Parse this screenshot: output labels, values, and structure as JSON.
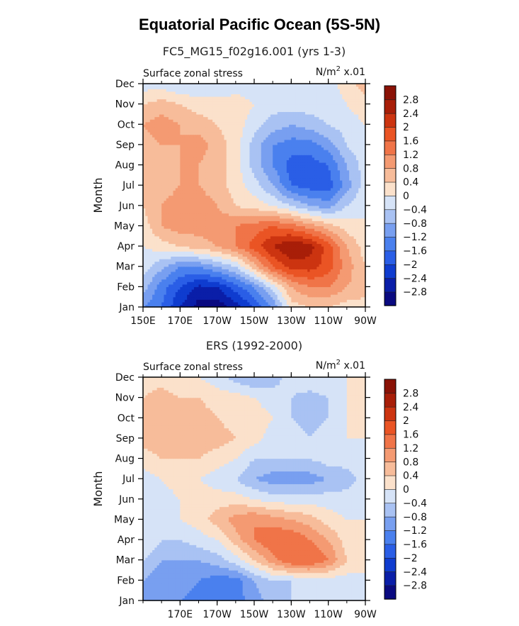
{
  "figure": {
    "title": "Equatorial Pacific Ocean (5S-5N)"
  },
  "chart_data": [
    {
      "type": "heatmap",
      "title": "FC5_MG15_f02g16.001 (yrs 1-3)",
      "left_label": "Surface zonal stress",
      "units": "N/m² x.01",
      "units_parts": {
        "base": "N/m",
        "sup": "2",
        "scale": "x.01"
      },
      "xlabel": "",
      "ylabel": "Month",
      "xlim": [
        150,
        270
      ],
      "x_ticks": [
        150,
        170,
        190,
        210,
        230,
        250,
        270
      ],
      "x_tick_labels": [
        "150E",
        "170E",
        "170W",
        "150W",
        "130W",
        "110W",
        "90W"
      ],
      "y_tick_labels": [
        "Jan",
        "Feb",
        "Mar",
        "Apr",
        "May",
        "Jun",
        "Jul",
        "Aug",
        "Sep",
        "Oct",
        "Nov",
        "Dec"
      ],
      "colorbar": {
        "levels": [
          -2.8,
          -2.4,
          -2,
          -1.6,
          -1.2,
          -0.8,
          -0.4,
          0,
          0.4,
          0.8,
          1.2,
          1.6,
          2,
          2.4,
          2.8
        ],
        "labels": [
          "−2.8",
          "−2.4",
          "−2",
          "−1.6",
          "−1.2",
          "−0.8",
          "−0.4",
          "0",
          "0.4",
          "0.8",
          "1.2",
          "1.6",
          "2",
          "2.4",
          "2.8"
        ],
        "colors": [
          "#0a0a80",
          "#0a1ea8",
          "#0f3ccf",
          "#2a5ee6",
          "#4a80ee",
          "#789ff0",
          "#a9c2f3",
          "#d6e3f7",
          "#fbe1cb",
          "#f7bc9a",
          "#f49a72",
          "#f07448",
          "#ea5424",
          "#cc3410",
          "#a81e08",
          "#8a1206"
        ]
      },
      "x": [
        150,
        160,
        170,
        180,
        190,
        200,
        210,
        220,
        230,
        240,
        250,
        260,
        270
      ],
      "y": [
        1,
        2,
        3,
        4,
        5,
        6,
        7,
        8,
        9,
        10,
        11,
        12
      ],
      "z": [
        [
          -1.2,
          -1.6,
          -2.4,
          -3.0,
          -3.1,
          -2.6,
          -2.0,
          -1.2,
          0.2,
          0.4,
          0.4,
          0.2,
          0.2
        ],
        [
          -0.6,
          -1.4,
          -2.0,
          -2.5,
          -2.4,
          -1.8,
          -1.2,
          -0.2,
          0.8,
          1.2,
          1.2,
          0.8,
          0.6
        ],
        [
          -0.2,
          -0.7,
          -1.2,
          -1.2,
          -0.8,
          -0.4,
          0.6,
          1.6,
          2.2,
          2.2,
          1.8,
          1.0,
          0.4
        ],
        [
          0.0,
          0.2,
          0.4,
          0.6,
          0.8,
          1.2,
          1.8,
          2.4,
          2.8,
          2.6,
          1.8,
          0.8,
          0.2
        ],
        [
          0.2,
          0.8,
          1.0,
          1.0,
          1.0,
          1.2,
          1.4,
          1.6,
          1.4,
          1.0,
          0.6,
          0.2,
          0.0
        ],
        [
          0.4,
          0.8,
          1.0,
          1.0,
          0.8,
          0.4,
          0.2,
          0.0,
          -0.4,
          -0.8,
          -1.0,
          -0.4,
          0.0
        ],
        [
          0.4,
          0.6,
          0.8,
          0.8,
          0.6,
          0.2,
          -0.2,
          -0.8,
          -1.6,
          -1.8,
          -1.8,
          -1.0,
          -0.2
        ],
        [
          0.4,
          0.6,
          0.8,
          0.8,
          0.6,
          0.2,
          -0.6,
          -1.2,
          -1.8,
          -1.8,
          -1.6,
          -0.8,
          -0.2
        ],
        [
          0.6,
          0.8,
          0.8,
          1.0,
          0.6,
          0.2,
          -0.6,
          -1.2,
          -1.4,
          -1.4,
          -1.0,
          -0.4,
          0.0
        ],
        [
          0.8,
          1.0,
          0.8,
          0.6,
          0.4,
          0.2,
          -0.2,
          -0.6,
          -0.8,
          -0.6,
          -0.4,
          -0.2,
          0.0
        ],
        [
          0.4,
          0.6,
          0.4,
          0.2,
          0.2,
          0.2,
          0.0,
          -0.2,
          -0.2,
          -0.2,
          -0.2,
          0.0,
          0.2
        ],
        [
          -0.2,
          -0.2,
          -0.4,
          -0.4,
          -0.4,
          -0.2,
          -0.2,
          -0.4,
          -0.4,
          -0.2,
          -0.2,
          0.2,
          0.6
        ]
      ]
    },
    {
      "type": "heatmap",
      "title": "ERS (1992-2000)",
      "left_label": "Surface zonal stress",
      "units": "N/m² x.01",
      "units_parts": {
        "base": "N/m",
        "sup": "2",
        "scale": "x.01"
      },
      "xlabel": "",
      "ylabel": "Month",
      "xlim": [
        150,
        270
      ],
      "x_ticks": [
        170,
        190,
        210,
        230,
        250,
        270
      ],
      "x_tick_labels": [
        "170E",
        "170W",
        "150W",
        "130W",
        "110W",
        "90W"
      ],
      "y_tick_labels": [
        "Jan",
        "Feb",
        "Mar",
        "Apr",
        "May",
        "Jun",
        "Jul",
        "Aug",
        "Sep",
        "Oct",
        "Nov",
        "Dec"
      ],
      "colorbar": {
        "levels": [
          -2.8,
          -2.4,
          -2,
          -1.6,
          -1.2,
          -0.8,
          -0.4,
          0,
          0.4,
          0.8,
          1.2,
          1.6,
          2,
          2.4,
          2.8
        ],
        "labels": [
          "−2.8",
          "−2.4",
          "−2",
          "−1.6",
          "−1.2",
          "−0.8",
          "−0.4",
          "0",
          "0.4",
          "0.8",
          "1.2",
          "1.6",
          "2",
          "2.4",
          "2.8"
        ],
        "colors": [
          "#0a0a80",
          "#0a1ea8",
          "#0f3ccf",
          "#2a5ee6",
          "#4a80ee",
          "#789ff0",
          "#a9c2f3",
          "#d6e3f7",
          "#fbe1cb",
          "#f7bc9a",
          "#f49a72",
          "#f07448",
          "#ea5424",
          "#cc3410",
          "#a81e08",
          "#8a1206"
        ]
      },
      "x": [
        150,
        160,
        170,
        180,
        190,
        200,
        210,
        220,
        230,
        240,
        250,
        260,
        270
      ],
      "y": [
        1,
        2,
        3,
        4,
        5,
        6,
        7,
        8,
        9,
        10,
        11,
        12
      ],
      "z": [
        [
          -0.8,
          -1.2,
          -1.2,
          -1.4,
          -1.6,
          -1.4,
          -1.0,
          -0.6,
          -0.4,
          -0.2,
          -0.2,
          -0.2,
          0.0
        ],
        [
          -0.8,
          -1.2,
          -1.0,
          -1.2,
          -1.4,
          -1.4,
          -0.8,
          -0.4,
          -0.4,
          -0.2,
          -0.2,
          -0.2,
          0.0
        ],
        [
          -0.4,
          -0.8,
          -0.8,
          -0.8,
          -0.6,
          -0.2,
          0.4,
          1.0,
          1.6,
          1.6,
          1.2,
          0.4,
          0.0
        ],
        [
          0.0,
          -0.4,
          -0.4,
          -0.2,
          0.0,
          0.6,
          1.2,
          1.6,
          1.6,
          1.2,
          0.8,
          0.2,
          0.0
        ],
        [
          -0.2,
          -0.2,
          0.0,
          0.2,
          0.6,
          1.0,
          1.2,
          1.0,
          0.8,
          0.6,
          0.2,
          0.0,
          0.0
        ],
        [
          -0.4,
          -0.2,
          0.0,
          0.2,
          0.2,
          0.2,
          0.0,
          -0.2,
          -0.2,
          -0.2,
          -0.2,
          -0.2,
          -0.2
        ],
        [
          -0.2,
          0.0,
          0.2,
          0.0,
          -0.2,
          -0.4,
          -0.8,
          -1.0,
          -1.0,
          -1.0,
          -0.8,
          -0.6,
          -0.2
        ],
        [
          0.2,
          0.4,
          0.4,
          0.4,
          0.2,
          0.0,
          -0.4,
          -0.4,
          -0.4,
          -0.4,
          -0.2,
          -0.2,
          0.0
        ],
        [
          0.6,
          0.6,
          0.4,
          0.6,
          0.6,
          0.4,
          0.2,
          -0.2,
          -0.2,
          -0.4,
          -0.2,
          0.0,
          0.0
        ],
        [
          0.6,
          0.8,
          0.4,
          0.6,
          0.4,
          0.2,
          0.2,
          0.0,
          -0.4,
          -0.6,
          -0.4,
          0.0,
          0.0
        ],
        [
          0.4,
          0.6,
          0.4,
          0.4,
          0.2,
          0.2,
          0.0,
          -0.2,
          -0.4,
          -0.6,
          -0.4,
          0.0,
          0.0
        ],
        [
          0.2,
          0.2,
          0.0,
          0.0,
          -0.2,
          -0.6,
          -0.8,
          -0.6,
          -0.2,
          0.0,
          0.0,
          0.0,
          0.0
        ]
      ]
    }
  ]
}
